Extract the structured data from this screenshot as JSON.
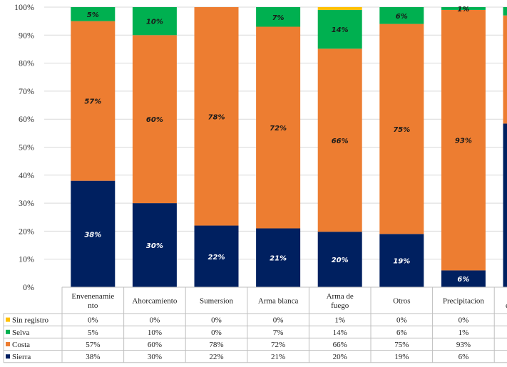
{
  "chart_data": {
    "type": "bar",
    "stacked": true,
    "percent": true,
    "categories": [
      [
        "Envenenamie",
        "nto"
      ],
      [
        "Ahorcamiento"
      ],
      [
        "Sumersion"
      ],
      [
        "Arma blanca"
      ],
      [
        "Arma de",
        "fuego"
      ],
      [
        "Otros"
      ],
      [
        "Precipitacion"
      ],
      [
        "No",
        "especificado"
      ]
    ],
    "series": [
      {
        "name": "Sierra",
        "color": "#002060",
        "values": [
          38,
          30,
          22,
          21,
          20,
          19,
          6,
          59
        ]
      },
      {
        "name": "Costa",
        "color": "#ED7D31",
        "values": [
          57,
          60,
          78,
          72,
          66,
          75,
          93,
          39
        ]
      },
      {
        "name": "Selva",
        "color": "#00B050",
        "values": [
          5,
          10,
          0,
          7,
          14,
          6,
          1,
          3
        ]
      },
      {
        "name": "Sin registro",
        "color": "#FFC000",
        "values": [
          0,
          0,
          0,
          0,
          1,
          0,
          0,
          0
        ]
      }
    ],
    "table_rows_order": [
      "Sin registro",
      "Selva",
      "Costa",
      "Sierra"
    ],
    "ylim": [
      0,
      100
    ],
    "yticks": [
      "0%",
      "10%",
      "20%",
      "30%",
      "40%",
      "50%",
      "60%",
      "70%",
      "80%",
      "90%",
      "100%"
    ],
    "grid": true,
    "legend": "data-table",
    "title": "",
    "xlabel": "",
    "ylabel": ""
  }
}
